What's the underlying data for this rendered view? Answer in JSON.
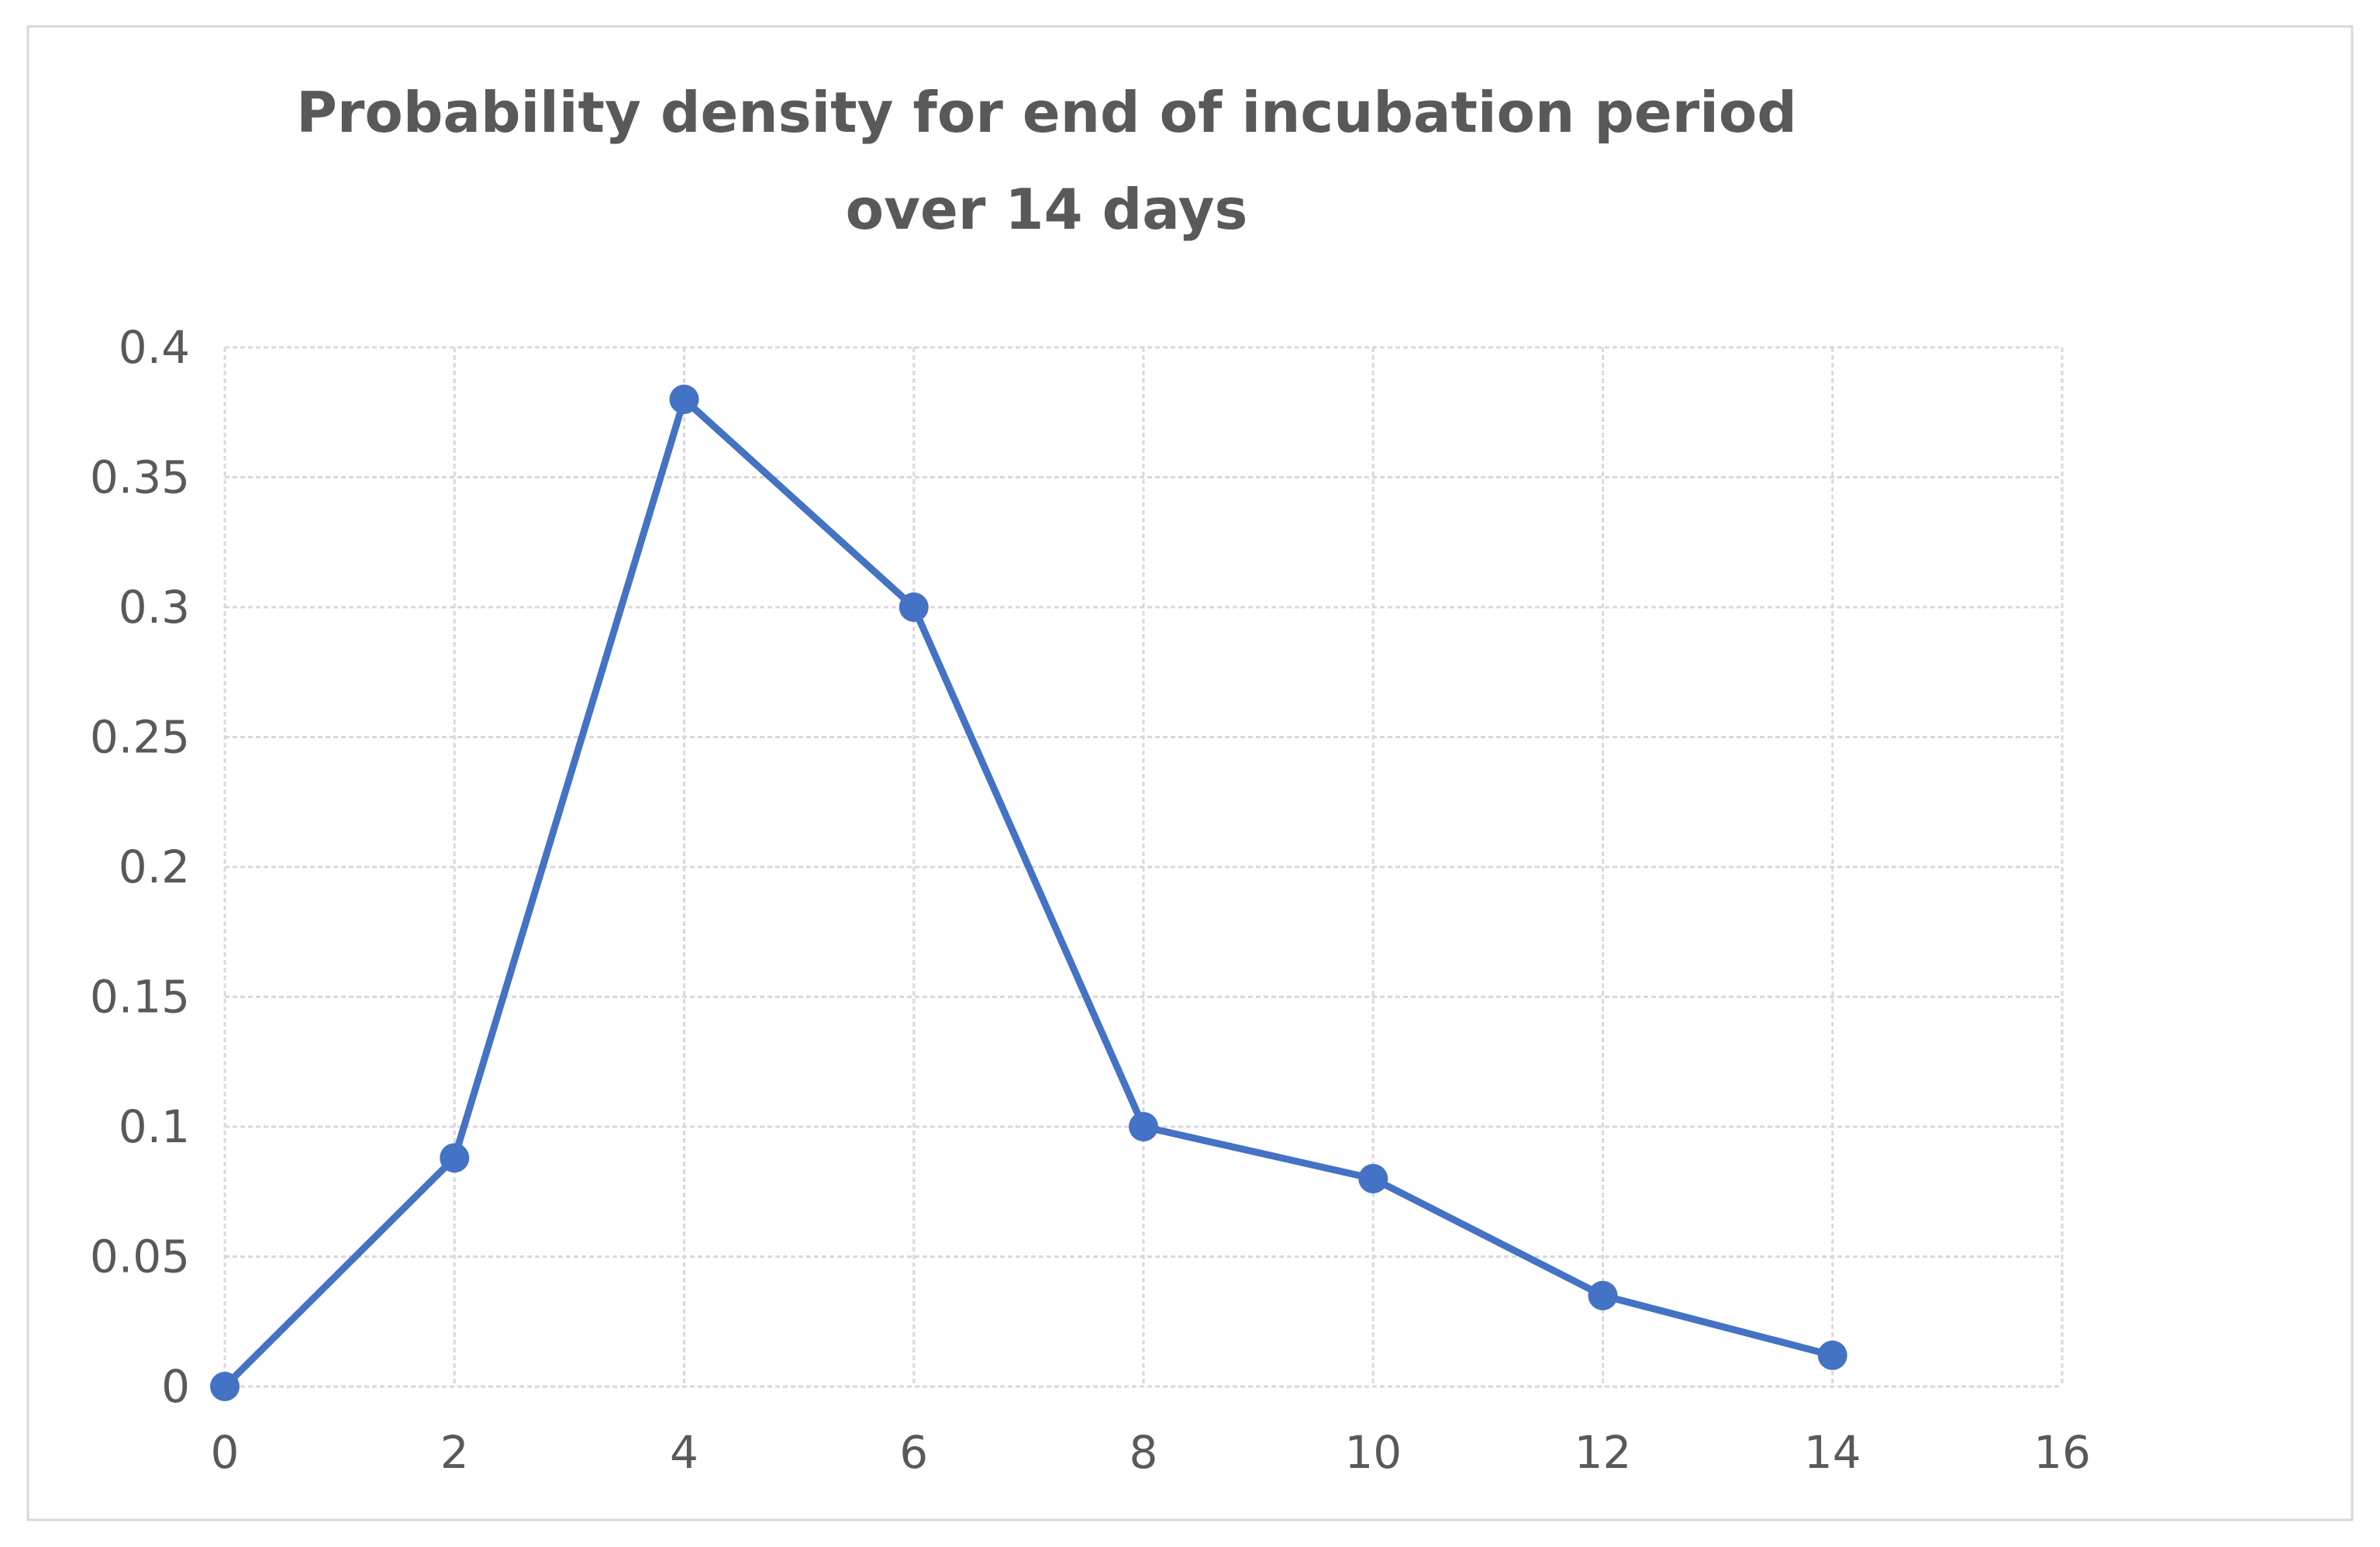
{
  "chart_data": {
    "type": "scatter",
    "mode": "lines+markers",
    "title_lines": [
      "Probability density for end of incubation period",
      "over 14 days"
    ],
    "xlabel": "",
    "ylabel": "",
    "x": [
      0,
      2,
      4,
      6,
      8,
      10,
      12,
      14
    ],
    "y": [
      0,
      0.088,
      0.38,
      0.3,
      0.1,
      0.08,
      0.035,
      0.012
    ],
    "xlim": [
      0,
      16
    ],
    "ylim": [
      0,
      0.4
    ],
    "x_ticks": [
      0,
      2,
      4,
      6,
      8,
      10,
      12,
      14,
      16
    ],
    "x_tick_labels": [
      "0",
      "2",
      "4",
      "6",
      "8",
      "10",
      "12",
      "14",
      "16"
    ],
    "y_ticks": [
      0,
      0.05,
      0.1,
      0.15,
      0.2,
      0.25,
      0.3,
      0.35,
      0.4
    ],
    "y_tick_labels": [
      "0",
      "0.05",
      "0.1",
      "0.15",
      "0.2",
      "0.25",
      "0.3",
      "0.35",
      "0.4"
    ],
    "grid": true,
    "legend": "none",
    "colors": {
      "series": "#4472C4",
      "grid": "#D9D9D9",
      "text": "#595959",
      "frame": "#D9D9D9"
    }
  }
}
